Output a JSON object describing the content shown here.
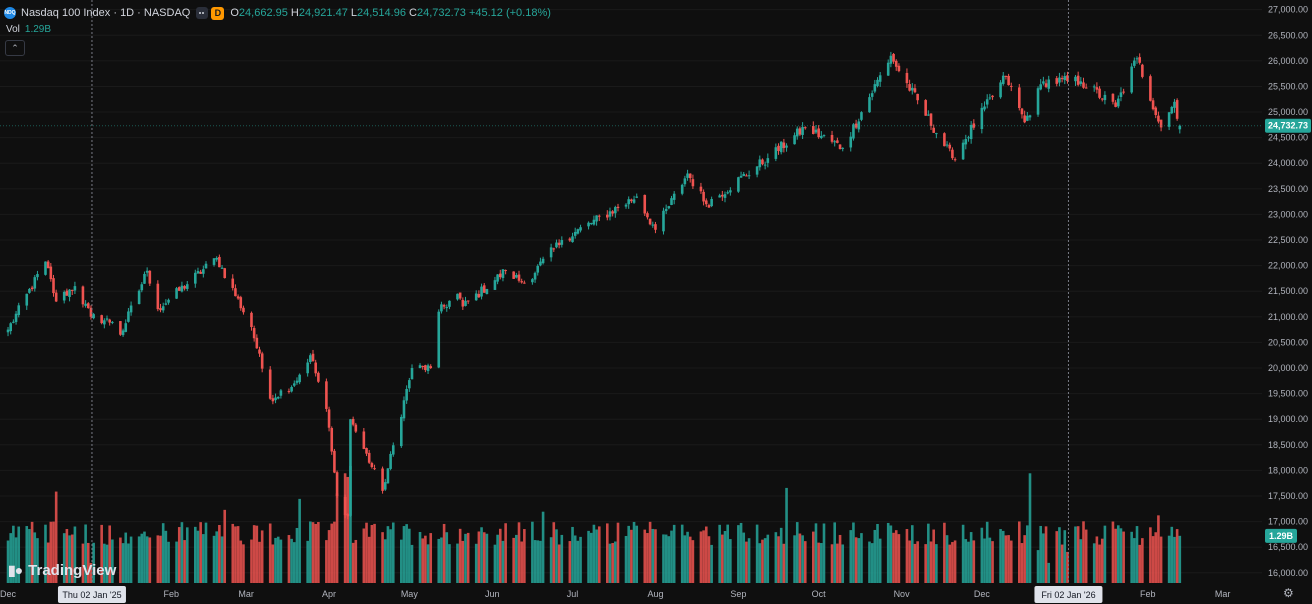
{
  "header": {
    "logo_text": "NDQ",
    "symbol": "Nasdaq 100 Index · 1D · NASDAQ",
    "badge": "D",
    "o_label": "O",
    "o_value": "24,662.95",
    "h_label": "H",
    "h_value": "24,921.47",
    "l_label": "L",
    "l_value": "24,514.96",
    "c_label": "C",
    "c_value": "24,732.73",
    "change": "+45.12 (+0.18%)"
  },
  "volume": {
    "label": "Vol",
    "value": "1.29B"
  },
  "branding": {
    "text": "TradingView"
  },
  "icons": {
    "collapse": "chevron-up-icon",
    "settings": "gear-icon",
    "menu": "more-dots-icon"
  },
  "colors": {
    "up": "#26a69a",
    "down": "#ef5350",
    "background": "#0f0f0f",
    "last_price_label": "#26a69a"
  },
  "crosshair_labels": [
    "Thu 02 Jan '25",
    "Fri 02 Jan '26"
  ],
  "chart_data": {
    "type": "candlestick",
    "title": "Nasdaq 100 Index · 1D · NASDAQ",
    "y_ticks": [
      "16,000.00",
      "16,500.00",
      "17,000.00",
      "17,500.00",
      "18,000.00",
      "18,500.00",
      "19,000.00",
      "19,500.00",
      "20,000.00",
      "20,500.00",
      "21,000.00",
      "21,500.00",
      "22,000.00",
      "22,500.00",
      "23,000.00",
      "23,500.00",
      "24,000.00",
      "24,500.00",
      "25,000.00",
      "25,500.00",
      "26,000.00",
      "26,500.00",
      "27,000.00"
    ],
    "ylim": [
      15800,
      27150
    ],
    "last_price": "24,732.73",
    "last_volume": "1.29B",
    "x_ticks": [
      "Dec",
      "Feb",
      "Mar",
      "Apr",
      "May",
      "Jun",
      "Jul",
      "Aug",
      "Sep",
      "Oct",
      "Nov",
      "Dec",
      "Feb",
      "Mar"
    ],
    "x_range": [
      "2024-11-29",
      "2026-03-06"
    ],
    "anchors": [
      [
        "2024-12-02",
        20750
      ],
      [
        "2024-12-16",
        22080
      ],
      [
        "2024-12-20",
        21300
      ],
      [
        "2024-12-27",
        21600
      ],
      [
        "2025-01-02",
        21000
      ],
      [
        "2025-01-10",
        20900
      ],
      [
        "2025-01-13",
        20650
      ],
      [
        "2025-01-23",
        21900
      ],
      [
        "2025-01-27",
        21150
      ],
      [
        "2025-02-18",
        22150
      ],
      [
        "2025-03-03",
        20800
      ],
      [
        "2025-03-10",
        19400
      ],
      [
        "2025-03-19",
        19700
      ],
      [
        "2025-03-25",
        20250
      ],
      [
        "2025-03-31",
        19200
      ],
      [
        "2025-04-04",
        17500
      ],
      [
        "2025-04-08",
        17100
      ],
      [
        "2025-04-09",
        19000
      ],
      [
        "2025-04-21",
        17600
      ],
      [
        "2025-05-02",
        20000
      ],
      [
        "2025-05-09",
        20000
      ],
      [
        "2025-05-12",
        21100
      ],
      [
        "2025-05-19",
        21450
      ],
      [
        "2025-05-21",
        21200
      ],
      [
        "2025-06-06",
        21900
      ],
      [
        "2025-06-13",
        21650
      ],
      [
        "2025-06-27",
        22500
      ],
      [
        "2025-07-25",
        23350
      ],
      [
        "2025-08-01",
        22700
      ],
      [
        "2025-08-13",
        23800
      ],
      [
        "2025-08-20",
        23200
      ],
      [
        "2025-09-12",
        24100
      ],
      [
        "2025-09-26",
        24700
      ],
      [
        "2025-10-10",
        24300
      ],
      [
        "2025-10-28",
        26100
      ],
      [
        "2025-10-31",
        25800
      ],
      [
        "2025-11-20",
        24100
      ],
      [
        "2025-12-10",
        25700
      ],
      [
        "2025-12-17",
        24800
      ],
      [
        "2025-12-24",
        25600
      ],
      [
        "2026-01-07",
        25600
      ],
      [
        "2026-01-20",
        25100
      ],
      [
        "2026-01-28",
        26050
      ],
      [
        "2026-02-06",
        24700
      ],
      [
        "2026-02-11",
        25200
      ],
      [
        "2026-02-13",
        24732.73
      ]
    ],
    "volume_ylim": [
      0,
      3.5
    ],
    "volume_base": 1.3,
    "volume_spikes": [
      [
        "2024-12-20",
        2.5
      ],
      [
        "2025-01-02",
        0.55
      ],
      [
        "2025-02-21",
        2.0
      ],
      [
        "2025-03-21",
        2.3
      ],
      [
        "2025-04-04",
        2.45
      ],
      [
        "2025-04-07",
        3.0
      ],
      [
        "2025-04-08",
        2.9
      ],
      [
        "2025-04-09",
        3.2
      ],
      [
        "2025-06-20",
        1.95
      ],
      [
        "2025-09-19",
        2.6
      ],
      [
        "2025-12-19",
        3.0
      ],
      [
        "2025-12-22",
        0.9
      ],
      [
        "2025-12-26",
        0.55
      ],
      [
        "2026-01-02",
        0.85
      ],
      [
        "2026-02-05",
        1.85
      ],
      [
        "2026-02-13",
        1.29
      ]
    ]
  }
}
